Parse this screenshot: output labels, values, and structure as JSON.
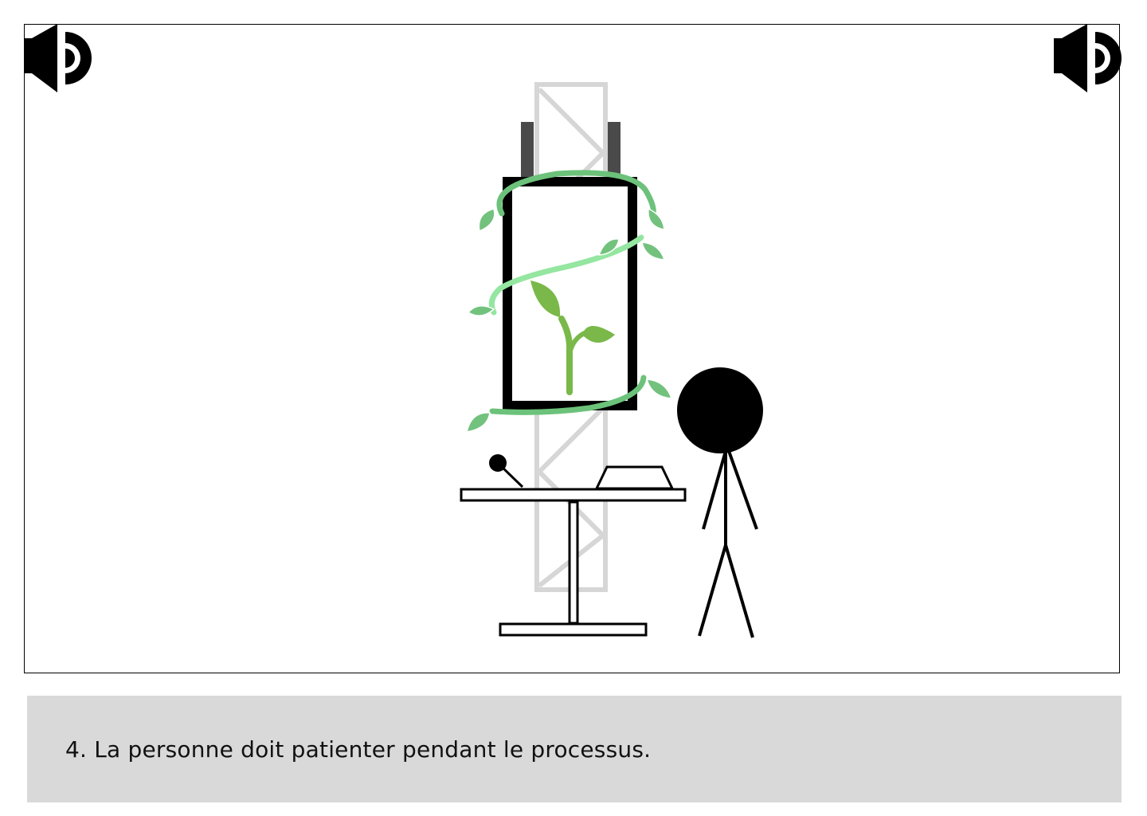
{
  "scene": {
    "colors": {
      "truss": "#d6d6d6",
      "rail": "#4a4a4a",
      "frame": "#000000",
      "vine_light": "#94e6a0",
      "vine_dark": "#6cc27a",
      "leaf": "#72c27e",
      "sprout": "#7ab84a",
      "ink": "#000000"
    },
    "icons": {
      "left_speaker": "speaker-icon",
      "right_speaker": "speaker-icon"
    }
  },
  "caption": {
    "text": "4. La personne doit patienter pendant le processus.",
    "background": "#d9d9d9"
  }
}
